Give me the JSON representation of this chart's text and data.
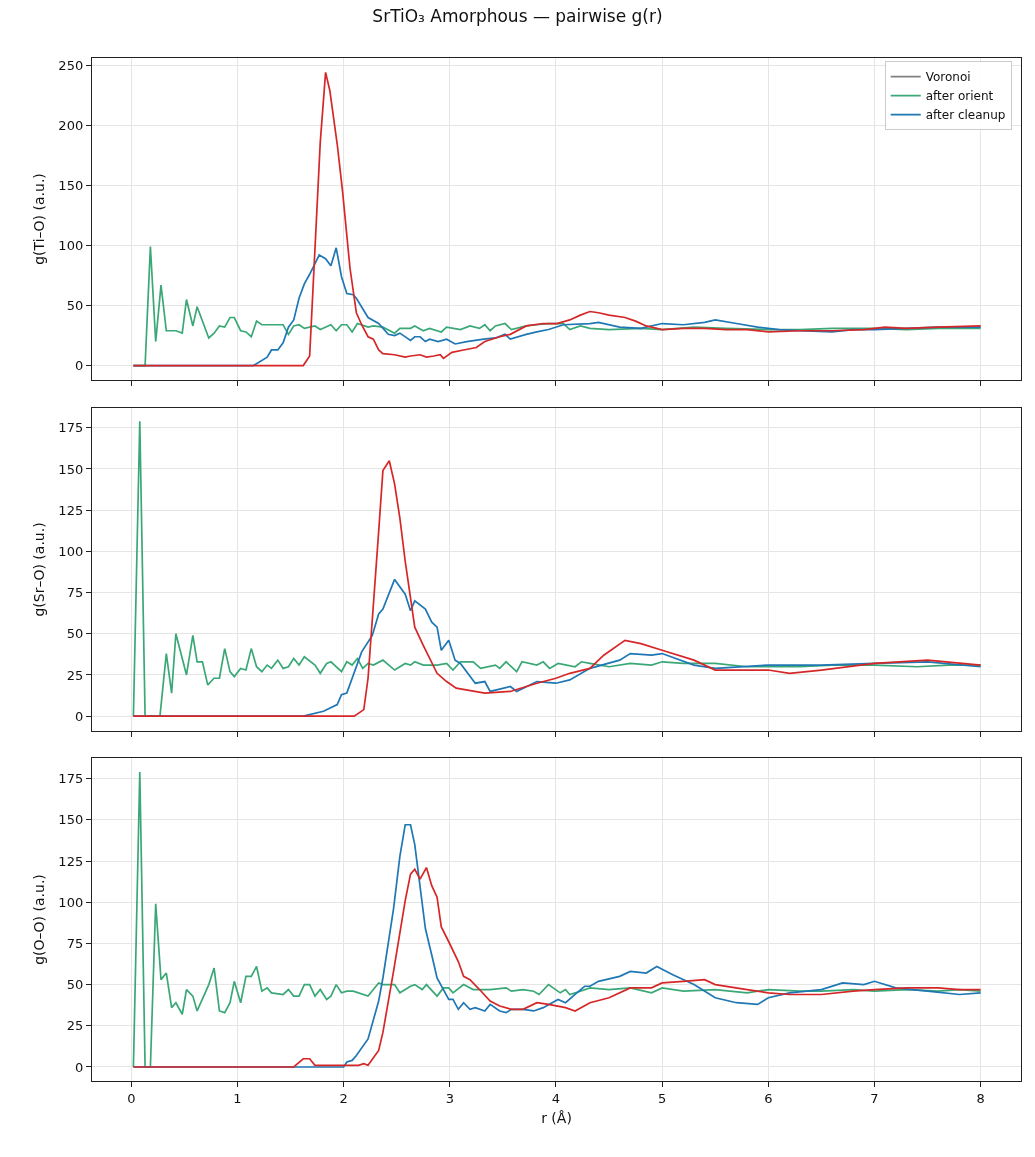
{
  "chart_data": [
    {
      "type": "line",
      "title": "SrTiO₃ Amorphous — pairwise g(r)",
      "ylabel": "g(Ti–O) (a.u.)",
      "xlim": [
        -0.37,
        8.38
      ],
      "xticks": [
        0,
        1,
        2,
        3,
        4,
        5,
        6,
        7,
        8
      ],
      "ylim": [
        -12,
        256
      ],
      "yticks": [
        0,
        50,
        100,
        150,
        200,
        250
      ],
      "grid": true,
      "legend": "top right",
      "tick_labels": "y",
      "series": [
        {
          "name": "Voronoi",
          "color": "#808080",
          "values": [
            null,
            null
          ]
        },
        {
          "name": "after orient",
          "color": "#3aa876",
          "x": [
            0.02,
            0.13,
            0.18,
            0.23,
            0.28,
            0.33,
            0.42,
            0.48,
            0.52,
            0.58,
            0.62,
            0.73,
            0.78,
            0.83,
            0.88,
            0.93,
            0.97,
            1.03,
            1.08,
            1.13,
            1.18,
            1.23,
            1.32,
            1.43,
            1.48,
            1.53,
            1.58,
            1.63,
            1.73,
            1.78,
            1.88,
            1.93,
            1.98,
            2.03,
            2.08,
            2.13,
            2.23,
            2.28,
            2.37,
            2.48,
            2.53,
            2.63,
            2.67,
            2.75,
            2.81,
            2.92,
            2.97,
            3.1,
            3.19,
            3.28,
            3.33,
            3.38,
            3.43,
            3.52,
            3.58,
            3.72,
            3.82,
            3.93,
            4.07,
            4.13,
            4.23,
            4.32,
            4.5,
            4.8,
            5.0,
            5.3,
            5.6,
            6.0,
            6.3,
            6.6,
            7.0,
            7.3,
            7.6,
            8.0
          ],
          "values": [
            0,
            0,
            99,
            20,
            67,
            29,
            29,
            27,
            55,
            33,
            49,
            23,
            27,
            33,
            32,
            40,
            40,
            29,
            28,
            24,
            37,
            34,
            34,
            34,
            26,
            33,
            34,
            31,
            33,
            30,
            34,
            29,
            34,
            34,
            28,
            35,
            32,
            33,
            32,
            27,
            31,
            31,
            33,
            29,
            31,
            28,
            32,
            30,
            33,
            31,
            34,
            29,
            33,
            35,
            30,
            33,
            34,
            35,
            35,
            30,
            33,
            31,
            30,
            31,
            30,
            32,
            31,
            30,
            30,
            31,
            31,
            30,
            31,
            31
          ]
        },
        {
          "name": "after cleanup",
          "color": "#1f77b4",
          "x": [
            0.02,
            1.15,
            1.28,
            1.32,
            1.38,
            1.43,
            1.48,
            1.53,
            1.58,
            1.63,
            1.68,
            1.77,
            1.83,
            1.88,
            1.93,
            1.98,
            2.03,
            2.09,
            2.12,
            2.23,
            2.33,
            2.42,
            2.48,
            2.53,
            2.63,
            2.67,
            2.72,
            2.77,
            2.81,
            2.89,
            2.97,
            3.05,
            3.16,
            3.32,
            3.43,
            3.52,
            3.57,
            3.72,
            3.82,
            3.93,
            4.07,
            4.32,
            4.4,
            4.6,
            4.8,
            5.0,
            5.2,
            5.4,
            5.5,
            5.7,
            5.9,
            6.1,
            6.3,
            6.6,
            6.8,
            7.0,
            7.3,
            7.6,
            7.8,
            8.0
          ],
          "values": [
            0,
            0,
            7,
            13,
            13,
            19,
            32,
            38,
            56,
            68,
            76,
            92,
            89,
            83,
            98,
            74,
            60,
            59,
            56,
            40,
            35,
            26,
            25,
            27,
            21,
            24,
            24,
            20,
            22,
            20,
            22,
            18,
            20,
            22,
            23,
            26,
            22,
            26,
            28,
            30,
            34,
            35,
            36,
            32,
            31,
            35,
            34,
            36,
            38,
            35,
            32,
            30,
            29,
            28,
            30,
            30,
            31,
            32,
            32,
            32
          ]
        },
        {
          "color": "#d62728",
          "x": [
            0.02,
            1.62,
            1.68,
            1.78,
            1.83,
            1.87,
            1.94,
            1.99,
            2.06,
            2.12,
            2.17,
            2.23,
            2.28,
            2.33,
            2.37,
            2.48,
            2.58,
            2.63,
            2.72,
            2.78,
            2.85,
            2.91,
            2.94,
            3.02,
            3.13,
            3.25,
            3.33,
            3.47,
            3.57,
            3.72,
            3.88,
            4.01,
            4.13,
            4.23,
            4.32,
            4.4,
            4.5,
            4.65,
            4.75,
            4.85,
            5.0,
            5.2,
            5.4,
            5.6,
            5.8,
            6.0,
            6.3,
            6.6,
            6.9,
            7.1,
            7.3,
            7.6,
            8.0
          ],
          "values": [
            0,
            0,
            8,
            186,
            244,
            229,
            184,
            145,
            81,
            44,
            34,
            24,
            22,
            13,
            10,
            9,
            7,
            8,
            9,
            7,
            8,
            9,
            6,
            11,
            13,
            15,
            20,
            24,
            26,
            33,
            35,
            35,
            38,
            42,
            45,
            44,
            42,
            40,
            37,
            33,
            30,
            31,
            31,
            30,
            30,
            28,
            29,
            29,
            30,
            32,
            31,
            32,
            33
          ]
        }
      ]
    },
    {
      "type": "line",
      "ylabel": "g(Sr–O) (a.u.)",
      "xlim": [
        -0.37,
        8.38
      ],
      "xticks": [
        0,
        1,
        2,
        3,
        4,
        5,
        6,
        7,
        8
      ],
      "ylim": [
        -9,
        187
      ],
      "yticks": [
        0,
        25,
        50,
        75,
        100,
        125,
        150,
        175
      ],
      "grid": true,
      "tick_labels": "y",
      "series": [
        {
          "color": "#3aa876",
          "x": [
            0.02,
            0.08,
            0.13,
            0.27,
            0.33,
            0.38,
            0.42,
            0.52,
            0.58,
            0.62,
            0.67,
            0.72,
            0.78,
            0.83,
            0.88,
            0.93,
            0.97,
            1.03,
            1.08,
            1.13,
            1.18,
            1.23,
            1.28,
            1.32,
            1.38,
            1.43,
            1.48,
            1.53,
            1.58,
            1.63,
            1.73,
            1.78,
            1.84,
            1.88,
            1.98,
            2.03,
            2.08,
            2.13,
            2.18,
            2.23,
            2.28,
            2.37,
            2.48,
            2.58,
            2.63,
            2.67,
            2.75,
            2.88,
            2.97,
            3.03,
            3.1,
            3.22,
            3.29,
            3.43,
            3.47,
            3.53,
            3.63,
            3.68,
            3.82,
            3.88,
            3.94,
            4.02,
            4.18,
            4.24,
            4.32,
            4.5,
            4.7,
            4.9,
            5.0,
            5.2,
            5.5,
            5.8,
            6.0,
            6.3,
            6.6,
            7.0,
            7.4,
            7.7,
            8.0
          ],
          "values": [
            0,
            179,
            0,
            0,
            38,
            14,
            50,
            25,
            49,
            33,
            33,
            19,
            23,
            23,
            41,
            27,
            24,
            29,
            28,
            41,
            30,
            27,
            31,
            29,
            34,
            29,
            30,
            35,
            31,
            36,
            31,
            26,
            32,
            33,
            27,
            33,
            31,
            35,
            29,
            32,
            31,
            34,
            28,
            32,
            31,
            33,
            31,
            31,
            32,
            28,
            33,
            33,
            29,
            31,
            29,
            33,
            27,
            33,
            31,
            33,
            29,
            32,
            30,
            33,
            32,
            30,
            32,
            31,
            33,
            32,
            32,
            30,
            30,
            30,
            31,
            31,
            30,
            31,
            31
          ]
        },
        {
          "color": "#1f77b4",
          "x": [
            0.02,
            1.62,
            1.81,
            1.94,
            1.98,
            2.03,
            2.17,
            2.27,
            2.33,
            2.37,
            2.48,
            2.58,
            2.63,
            2.67,
            2.77,
            2.83,
            2.88,
            2.92,
            2.99,
            3.05,
            3.1,
            3.24,
            3.33,
            3.38,
            3.57,
            3.63,
            3.82,
            4.0,
            4.13,
            4.32,
            4.6,
            4.7,
            4.9,
            5.0,
            5.3,
            5.5,
            6.0,
            6.5,
            7.0,
            7.5,
            8.0
          ],
          "values": [
            0,
            0,
            3,
            7,
            13,
            14,
            39,
            49,
            62,
            65,
            83,
            74,
            64,
            70,
            65,
            57,
            54,
            40,
            46,
            34,
            32,
            20,
            21,
            15,
            18,
            15,
            21,
            20,
            22,
            29,
            34,
            38,
            37,
            38,
            31,
            29,
            31,
            31,
            32,
            33,
            30
          ]
        },
        {
          "color": "#d62728",
          "x": [
            0.02,
            2.1,
            2.19,
            2.23,
            2.33,
            2.37,
            2.43,
            2.48,
            2.53,
            2.58,
            2.67,
            2.75,
            2.88,
            2.97,
            3.06,
            3.33,
            3.57,
            3.82,
            4.0,
            4.13,
            4.32,
            4.45,
            4.65,
            4.8,
            5.0,
            5.3,
            5.5,
            6.0,
            6.2,
            6.5,
            7.0,
            7.5,
            8.0
          ],
          "values": [
            0,
            0,
            4,
            23,
            112,
            149,
            155,
            141,
            120,
            94,
            54,
            43,
            26,
            21,
            17,
            14,
            15,
            20,
            23,
            26,
            29,
            37,
            46,
            44,
            40,
            34,
            28,
            28,
            26,
            28,
            32,
            34,
            31
          ]
        }
      ]
    },
    {
      "type": "line",
      "ylabel": "g(O–O) (a.u.)",
      "xlabel": "r (Å)",
      "xlim": [
        -0.37,
        8.38
      ],
      "xticks": [
        0,
        1,
        2,
        3,
        4,
        5,
        6,
        7,
        8
      ],
      "ylim": [
        -8.5,
        187.5
      ],
      "yticks": [
        0,
        25,
        50,
        75,
        100,
        125,
        150,
        175
      ],
      "grid": true,
      "series": [
        {
          "color": "#3aa876",
          "x": [
            0.02,
            0.08,
            0.13,
            0.18,
            0.23,
            0.28,
            0.33,
            0.38,
            0.42,
            0.48,
            0.52,
            0.58,
            0.62,
            0.73,
            0.78,
            0.83,
            0.88,
            0.93,
            0.97,
            1.03,
            1.08,
            1.13,
            1.18,
            1.23,
            1.28,
            1.32,
            1.43,
            1.48,
            1.53,
            1.58,
            1.63,
            1.68,
            1.73,
            1.78,
            1.84,
            1.88,
            1.93,
            1.98,
            2.03,
            2.09,
            2.23,
            2.28,
            2.33,
            2.37,
            2.48,
            2.53,
            2.63,
            2.67,
            2.74,
            2.78,
            2.88,
            2.94,
            2.99,
            3.03,
            3.13,
            3.22,
            3.38,
            3.53,
            3.58,
            3.69,
            3.79,
            3.84,
            3.93,
            4.04,
            4.09,
            4.13,
            4.23,
            4.32,
            4.5,
            4.7,
            4.9,
            5.0,
            5.2,
            5.5,
            5.8,
            6.0,
            6.3,
            6.5,
            6.8,
            7.0,
            7.3,
            7.6,
            7.8,
            8.0
          ],
          "values": [
            0,
            179,
            0,
            0,
            99,
            53,
            57,
            36,
            39,
            32,
            47,
            43,
            34,
            50,
            60,
            34,
            33,
            39,
            52,
            39,
            55,
            55,
            61,
            46,
            48,
            45,
            44,
            47,
            43,
            43,
            50,
            50,
            43,
            47,
            41,
            43,
            50,
            45,
            46,
            46,
            43,
            47,
            51,
            50,
            50,
            45,
            49,
            50,
            47,
            50,
            43,
            48,
            48,
            45,
            50,
            47,
            47,
            48,
            46,
            47,
            46,
            44,
            50,
            45,
            47,
            44,
            46,
            48,
            47,
            48,
            45,
            48,
            46,
            47,
            45,
            47,
            46,
            46,
            47,
            46,
            47,
            46,
            47,
            46
          ]
        },
        {
          "color": "#1f77b4",
          "x": [
            0.02,
            2.0,
            2.03,
            2.08,
            2.12,
            2.23,
            2.33,
            2.37,
            2.47,
            2.53,
            2.58,
            2.63,
            2.67,
            2.77,
            2.83,
            2.88,
            2.99,
            3.03,
            3.08,
            3.13,
            3.19,
            3.24,
            3.33,
            3.38,
            3.47,
            3.53,
            3.58,
            3.69,
            3.79,
            3.88,
            4.02,
            4.09,
            4.18,
            4.27,
            4.32,
            4.4,
            4.6,
            4.7,
            4.85,
            4.95,
            5.1,
            5.3,
            5.5,
            5.7,
            5.9,
            6.0,
            6.2,
            6.5,
            6.7,
            6.9,
            7.0,
            7.2,
            7.5,
            7.8,
            8.0
          ],
          "values": [
            0,
            0,
            3,
            4,
            7,
            17,
            40,
            54,
            96,
            128,
            147,
            147,
            135,
            84,
            68,
            54,
            41,
            41,
            35,
            39,
            35,
            36,
            34,
            38,
            34,
            33,
            35,
            35,
            34,
            36,
            41,
            39,
            44,
            49,
            49,
            52,
            55,
            58,
            57,
            61,
            56,
            50,
            42,
            39,
            38,
            42,
            45,
            47,
            51,
            50,
            52,
            48,
            46,
            44,
            45
          ]
        },
        {
          "color": "#d62728",
          "x": [
            0.02,
            1.53,
            1.62,
            1.68,
            1.73,
            2.0,
            2.14,
            2.19,
            2.23,
            2.33,
            2.37,
            2.47,
            2.58,
            2.63,
            2.67,
            2.72,
            2.78,
            2.83,
            2.88,
            2.92,
            2.99,
            3.08,
            3.13,
            3.19,
            3.28,
            3.38,
            3.47,
            3.58,
            3.69,
            3.82,
            3.93,
            4.09,
            4.18,
            4.32,
            4.5,
            4.7,
            4.9,
            5.0,
            5.2,
            5.4,
            5.5,
            5.8,
            6.0,
            6.2,
            6.5,
            6.8,
            7.0,
            7.3,
            7.6,
            7.8,
            8.0
          ],
          "values": [
            0,
            0,
            5,
            5,
            1,
            1,
            1,
            2,
            1,
            10,
            21,
            58,
            101,
            117,
            120,
            114,
            121,
            110,
            103,
            85,
            76,
            64,
            55,
            53,
            47,
            40,
            37,
            35,
            35,
            39,
            38,
            36,
            34,
            39,
            42,
            48,
            48,
            51,
            52,
            53,
            50,
            47,
            45,
            44,
            44,
            46,
            47,
            48,
            48,
            47,
            47
          ]
        }
      ]
    }
  ]
}
